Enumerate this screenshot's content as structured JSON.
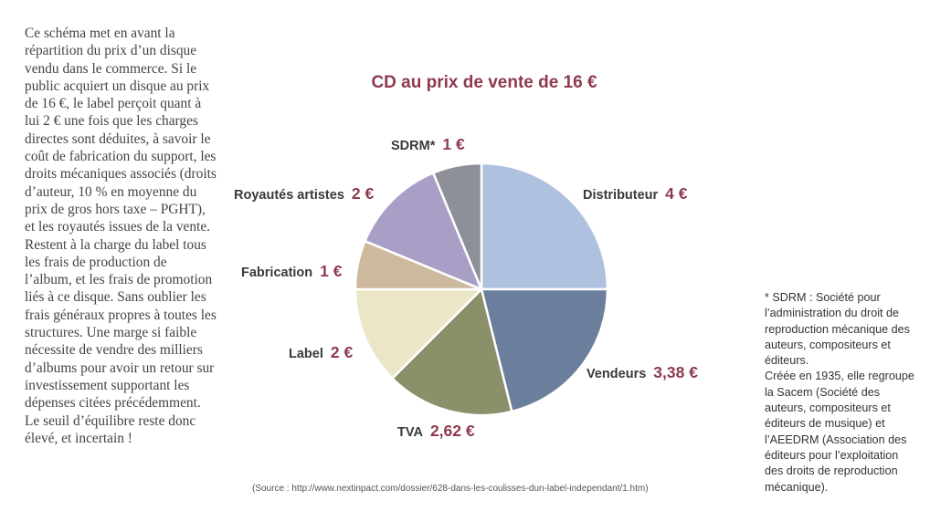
{
  "left_text": "Ce schéma met en avant la répartition du prix d’un disque vendu dans le commerce. Si le public acquiert un disque au prix de 16 €, le label perçoit quant à lui 2 € une fois que les charges directes sont déduites, à savoir le coût de fabrication du support, les droits mécaniques associés (droits d’auteur, 10 % en moyenne du prix de gros hors taxe – PGHT), et les royautés issues de la vente. Restent à la charge du label tous les frais de production de l’album, et les frais de promotion liés à ce disque. Sans oublier les frais généraux propres à toutes les structures. Une marge si faible nécessite de vendre des milliers d’albums pour avoir un retour sur investissement supportant les dépenses citées précédemment. Le seuil d’équilibre reste donc élevé, et incertain !",
  "chart_data": {
    "type": "pie",
    "title": "CD au prix de vente de 16 €",
    "total": 16,
    "slices": [
      {
        "name": "Distributeur",
        "display": "4 €",
        "value": 4,
        "color": "#aec2df"
      },
      {
        "name": "Vendeurs",
        "display": "3,38 €",
        "value": 3.38,
        "color": "#6b7f9c"
      },
      {
        "name": "TVA",
        "display": "2,62 €",
        "value": 2.62,
        "color": "#8b8f6a"
      },
      {
        "name": "Label",
        "display": "2 €",
        "value": 2,
        "color": "#ebe6c7"
      },
      {
        "name": "Fabrication",
        "display": "1 €",
        "value": 1,
        "color": "#cdb99e"
      },
      {
        "name": "Royautés artistes",
        "display": "2 €",
        "value": 2,
        "color": "#a99fc6"
      },
      {
        "name": "SDRM*",
        "display": "1 €",
        "value": 1,
        "color": "#8e9098"
      }
    ]
  },
  "source": "(Source : http://www.nextinpact.com/dossier/628-dans-les-coulisses-dun-label-independant/1.htm)",
  "footnote": {
    "line1": "* SDRM : Société pour l’administration du droit de reproduction mécanique des auteurs, compositeurs et éditeurs.",
    "line2": "Créée en 1935, elle regroupe la Sacem (Société des auteurs, compositeurs et éditeurs de musique) et l’AEEDRM (Association des éditeurs pour l’exploitation des droits de reproduction mécanique)."
  }
}
